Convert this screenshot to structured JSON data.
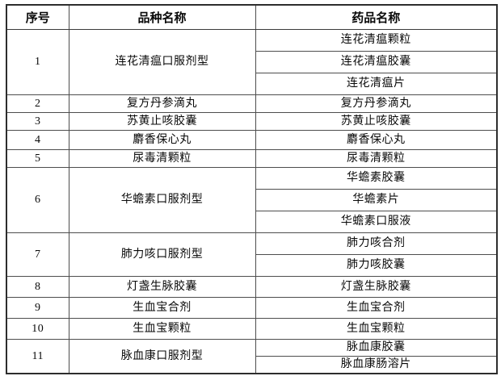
{
  "table": {
    "headers": [
      "序号",
      "品种名称",
      "药品名称"
    ],
    "rows": [
      {
        "no": "1",
        "variety": "连花清瘟口服剂型",
        "drugs": [
          "连花清瘟颗粒",
          "连花清瘟胶囊",
          "连花清瘟片"
        ]
      },
      {
        "no": "2",
        "variety": "复方丹参滴丸",
        "drugs": [
          "复方丹参滴丸"
        ]
      },
      {
        "no": "3",
        "variety": "苏黄止咳胶囊",
        "drugs": [
          "苏黄止咳胶囊"
        ]
      },
      {
        "no": "4",
        "variety": "麝香保心丸",
        "drugs": [
          "麝香保心丸"
        ]
      },
      {
        "no": "5",
        "variety": "尿毒清颗粒",
        "drugs": [
          "尿毒清颗粒"
        ]
      },
      {
        "no": "6",
        "variety": "华蟾素口服剂型",
        "drugs": [
          "华蟾素胶囊",
          "华蟾素片",
          "华蟾素口服液"
        ]
      },
      {
        "no": "7",
        "variety": "肺力咳口服剂型",
        "drugs": [
          "肺力咳合剂",
          "肺力咳胶囊"
        ]
      },
      {
        "no": "8",
        "variety": "灯盏生脉胶囊",
        "drugs": [
          "灯盏生脉胶囊"
        ]
      },
      {
        "no": "9",
        "variety": "生血宝合剂",
        "drugs": [
          "生血宝合剂"
        ]
      },
      {
        "no": "10",
        "variety": "生血宝颗粒",
        "drugs": [
          "生血宝颗粒"
        ]
      },
      {
        "no": "11",
        "variety": "脉血康口服剂型",
        "drugs": [
          "脉血康胶囊",
          "脉血康肠溶片"
        ]
      }
    ],
    "colors": {
      "page_bg": "#ffffff",
      "cell_bg": "#ffffff",
      "text": "#0a0a0a",
      "border_outer": "#2d2d2d",
      "border_inner": "#4d4d4d",
      "border_subrow": "#8a8a8a"
    }
  }
}
